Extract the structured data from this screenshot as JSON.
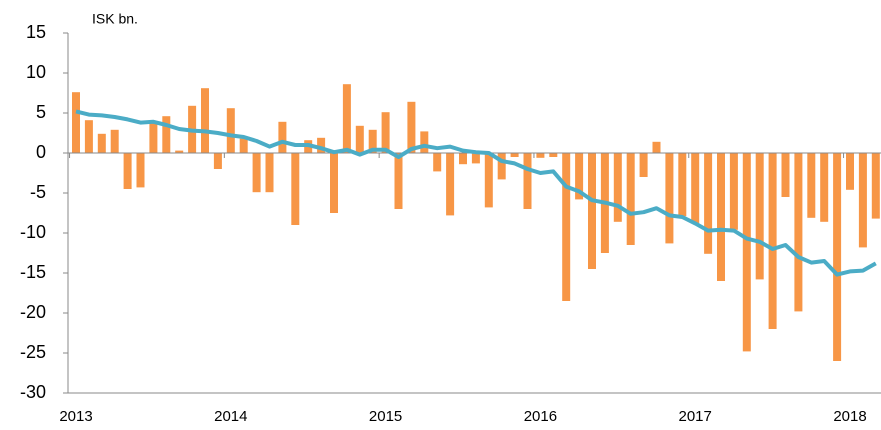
{
  "chart_data": {
    "type": "bar_line",
    "y_label": "ISK bn.",
    "categories": [
      "2013",
      null,
      null,
      null,
      null,
      null,
      null,
      null,
      null,
      null,
      null,
      null,
      "2014",
      null,
      null,
      null,
      null,
      null,
      null,
      null,
      null,
      null,
      null,
      null,
      "2015",
      null,
      null,
      null,
      null,
      null,
      null,
      null,
      null,
      null,
      null,
      null,
      "2016",
      null,
      null,
      null,
      null,
      null,
      null,
      null,
      null,
      null,
      null,
      null,
      "2017",
      null,
      null,
      null,
      null,
      null,
      null,
      null,
      null,
      null,
      null,
      null,
      "2018",
      null,
      null
    ],
    "series": [
      {
        "type": "bar",
        "color": "#f79646",
        "values": [
          7.6,
          4.1,
          2.4,
          2.9,
          -4.5,
          -4.3,
          3.9,
          4.6,
          0.3,
          5.9,
          8.1,
          -2.0,
          5.6,
          1.8,
          -4.9,
          -4.9,
          3.9,
          -9.0,
          1.6,
          1.9,
          -7.5,
          8.6,
          3.4,
          2.9,
          5.1,
          -7.0,
          6.4,
          2.7,
          -2.3,
          -7.8,
          -1.4,
          -1.3,
          -6.8,
          -3.3,
          -0.5,
          -7.0,
          -0.6,
          -0.5,
          -18.5,
          -5.8,
          -14.5,
          -12.5,
          -8.6,
          -11.5,
          -3.0,
          1.4,
          -11.3,
          -7.9,
          -8.8,
          -12.6,
          -16.0,
          -9.6,
          -24.8,
          -15.8,
          -22.0,
          -5.5,
          -19.8,
          -8.1,
          -8.6,
          -26.0,
          -4.6,
          -11.8,
          -8.2
        ]
      },
      {
        "type": "line",
        "color": "#4bacc6",
        "values": [
          5.2,
          4.8,
          4.7,
          4.5,
          4.2,
          3.8,
          3.9,
          3.5,
          3.0,
          2.8,
          2.7,
          2.5,
          2.2,
          2.0,
          1.5,
          0.8,
          1.4,
          1.0,
          1.0,
          0.6,
          0.1,
          0.4,
          -0.2,
          0.4,
          0.4,
          -0.5,
          0.5,
          0.9,
          0.6,
          0.8,
          0.3,
          0.1,
          0.0,
          -1.0,
          -1.3,
          -2.0,
          -2.5,
          -2.3,
          -4.2,
          -4.8,
          -5.9,
          -6.2,
          -6.6,
          -7.6,
          -7.4,
          -6.9,
          -7.8,
          -8.0,
          -8.8,
          -9.7,
          -9.6,
          -9.7,
          -10.7,
          -11.1,
          -12.0,
          -11.5,
          -13.0,
          -13.7,
          -13.5,
          -15.2,
          -14.8,
          -14.7,
          -13.8
        ]
      }
    ],
    "ylim": [
      -30,
      15
    ],
    "yticks": [
      -30,
      -25,
      -20,
      -15,
      -10,
      -5,
      0,
      5,
      10,
      15
    ],
    "grid": false
  }
}
